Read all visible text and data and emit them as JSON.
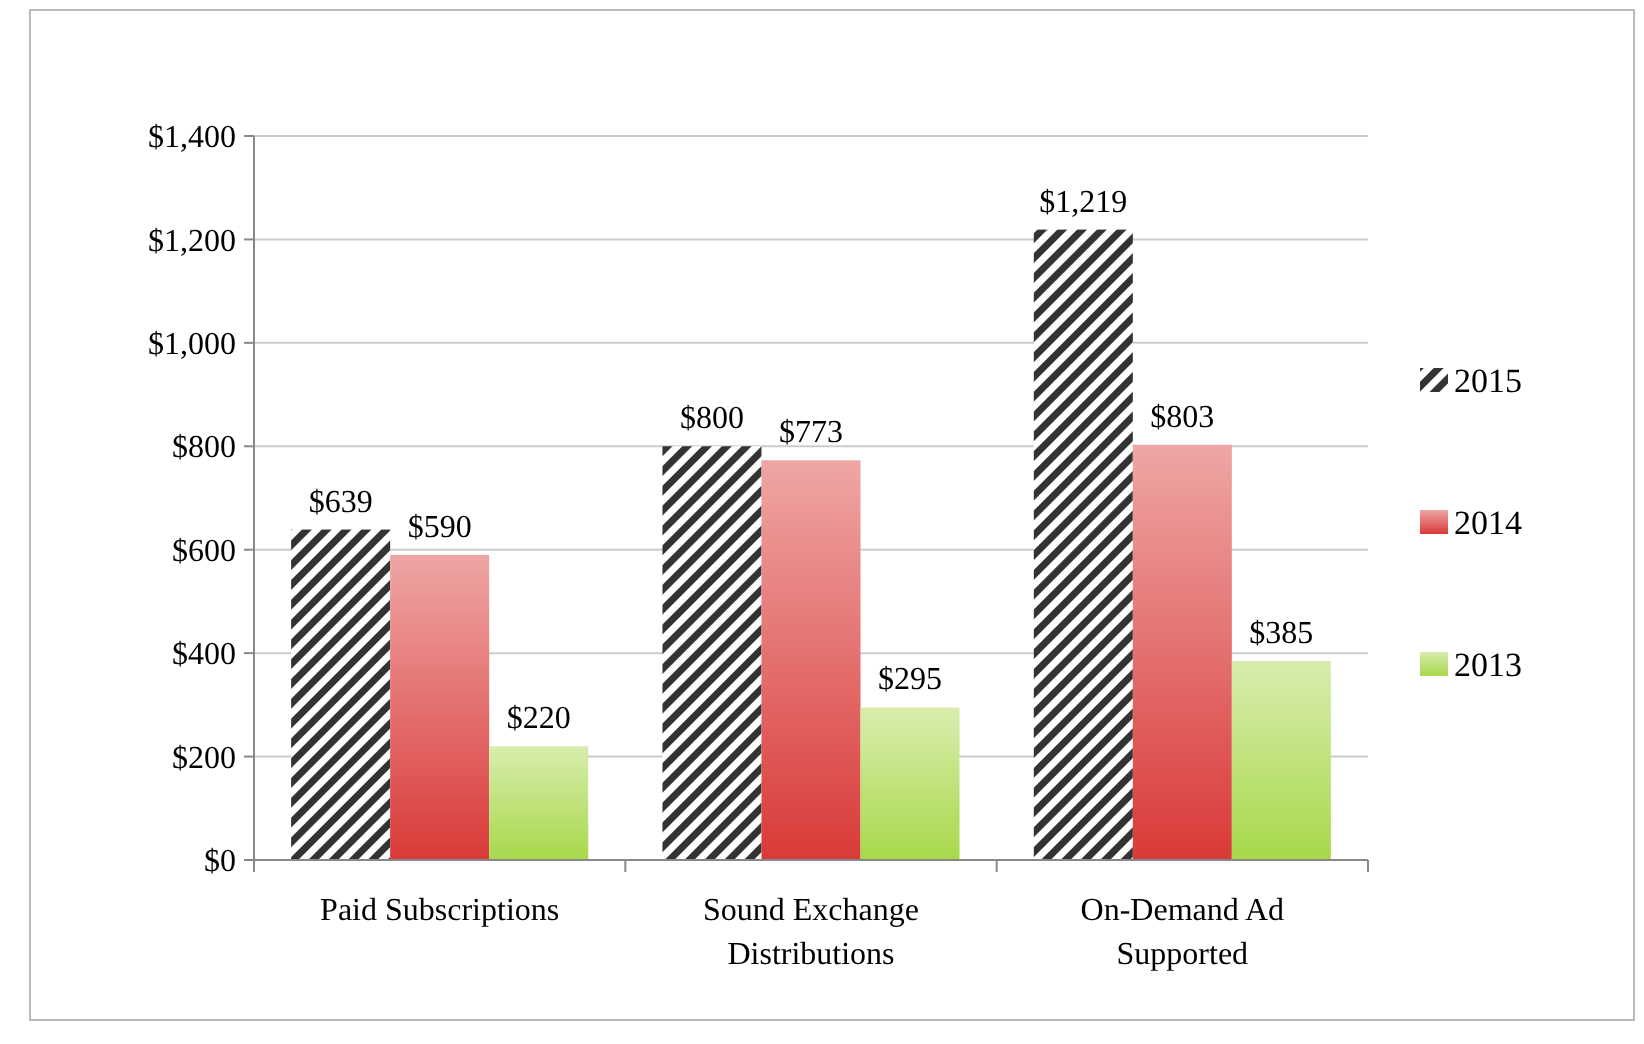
{
  "chart_data": {
    "type": "bar",
    "categories": [
      "Paid Subscriptions",
      "Sound Exchange Distributions",
      "On-Demand Ad Supported"
    ],
    "series": [
      {
        "name": "2015",
        "color": "#333333",
        "values": [
          639,
          800,
          1219
        ],
        "value_labels": [
          "$639",
          "$800",
          "$1,219"
        ]
      },
      {
        "name": "2014",
        "color": "#d93a38",
        "values": [
          590,
          773,
          803
        ],
        "value_labels": [
          "$590",
          "$773",
          "$803"
        ]
      },
      {
        "name": "2013",
        "color": "#a8d84a",
        "values": [
          220,
          295,
          385
        ],
        "value_labels": [
          "$220",
          "$295",
          "$385"
        ]
      }
    ],
    "ylim": [
      0,
      1400
    ],
    "yticks": [
      {
        "value": 0,
        "label": "$0"
      },
      {
        "value": 200,
        "label": "$200"
      },
      {
        "value": 400,
        "label": "$400"
      },
      {
        "value": 600,
        "label": "$600"
      },
      {
        "value": 800,
        "label": "$800"
      },
      {
        "value": 1000,
        "label": "$1,000"
      },
      {
        "value": 1200,
        "label": "$1,200"
      },
      {
        "value": 1400,
        "label": "$1,400"
      }
    ],
    "grid": "y",
    "legend": "right"
  }
}
